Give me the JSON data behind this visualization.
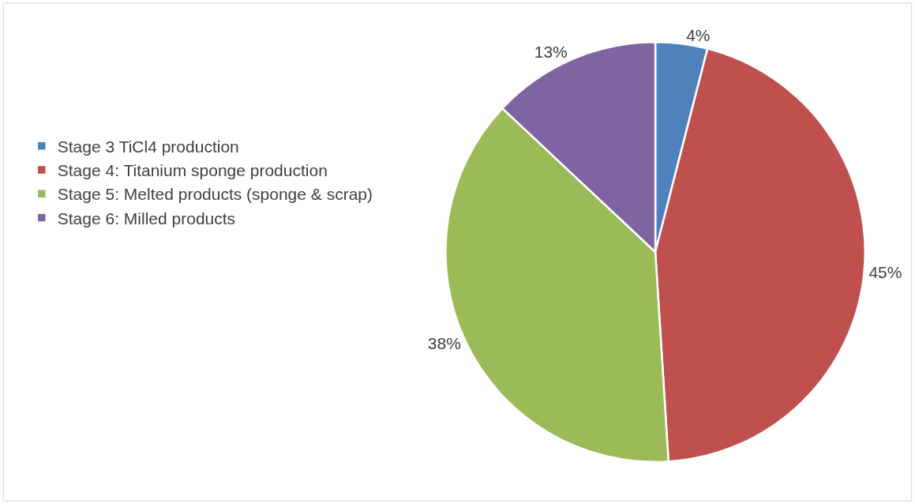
{
  "chart_data": {
    "type": "pie",
    "categories": [
      "Stage 3 TiCl4 production",
      "Stage 4: Titanium sponge production",
      "Stage 5: Melted products (sponge & scrap)",
      "Stage 6: Milled products"
    ],
    "values": [
      4,
      45,
      38,
      13
    ],
    "colors": [
      "#4f81bd",
      "#c0504d",
      "#9bbb59",
      "#8064a2"
    ],
    "value_labels": [
      "4%",
      "45%",
      "38%",
      "13%"
    ],
    "legend": "left"
  }
}
